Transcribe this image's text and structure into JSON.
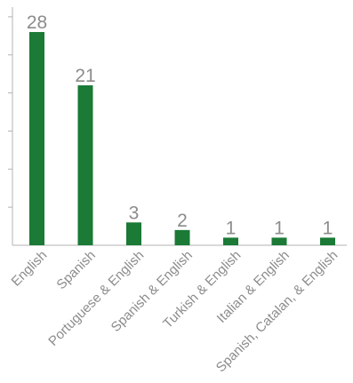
{
  "chart_data": {
    "type": "bar",
    "categories": [
      "English",
      "Spanish",
      "Portuguese & English",
      "Spanish & English",
      "Turkish & English",
      "Italian & English",
      "Spanish, Catalan, & English"
    ],
    "values": [
      28,
      21,
      3,
      2,
      1,
      1,
      1
    ],
    "value_labels": [
      "28",
      "21",
      "3",
      "2",
      "1",
      "1",
      "1"
    ],
    "ylim": [
      0,
      30
    ],
    "y_tick_step": 5,
    "y_tick_labels_shown": false,
    "grid": false,
    "legend": "none",
    "colors": {
      "bar": "#1a7a36",
      "text": "#8c8c8c",
      "axis": "#b3b3b3"
    }
  }
}
